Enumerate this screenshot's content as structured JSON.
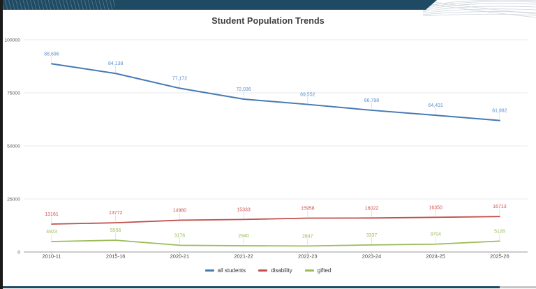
{
  "theme": {
    "header_bar_color": "#1f4a63",
    "left_strip_color": "#1b1b1b",
    "bottom_bar_color": "#1f4a63",
    "bottom_bar_right_color": "#c6c6c6",
    "grid_color": "#e2e2e2",
    "axis_color": "#9a9a9a",
    "background": "#ffffff"
  },
  "chart_data": {
    "type": "line",
    "title": "Student Population Trends",
    "xlabel": "",
    "ylabel": "",
    "categories": [
      "2010-11",
      "2015-16",
      "2020-21",
      "2021-22",
      "2022-23",
      "2023-24",
      "2024-25",
      "2025-26"
    ],
    "series": [
      {
        "name": "all students",
        "color": "#4679b2",
        "label_color": "#5b8fce",
        "values": [
          88696,
          84138,
          77172,
          72036,
          69552,
          66798,
          64431,
          61982
        ],
        "point_labels": [
          "88,696",
          "84,138",
          "77,172",
          "72,036",
          "69,552",
          "66,798",
          "64,431",
          "61,982"
        ]
      },
      {
        "name": "disability",
        "color": "#c0504d",
        "label_color": "#cf5350",
        "values": [
          13161,
          13772,
          14980,
          15333,
          15958,
          16022,
          16350,
          16713
        ],
        "point_labels": [
          "13161",
          "13772",
          "14980",
          "15333",
          "15958",
          "16022",
          "16350",
          "16713"
        ]
      },
      {
        "name": "gifted",
        "color": "#9bbb59",
        "label_color": "#9bbb59",
        "values": [
          4923,
          5556,
          3176,
          2940,
          2847,
          3337,
          3704,
          5128
        ],
        "point_labels": [
          "4923",
          "5556",
          "3176",
          "2940",
          "2847",
          "3337",
          "3704",
          "5128"
        ]
      }
    ],
    "y_ticks": [
      0,
      25000,
      50000,
      75000,
      100000
    ],
    "y_tick_labels": [
      "0",
      "25000",
      "50000",
      "75000",
      "100000"
    ],
    "ylim": [
      0,
      100000
    ],
    "grid": "horizontal",
    "legend_position": "bottom"
  }
}
